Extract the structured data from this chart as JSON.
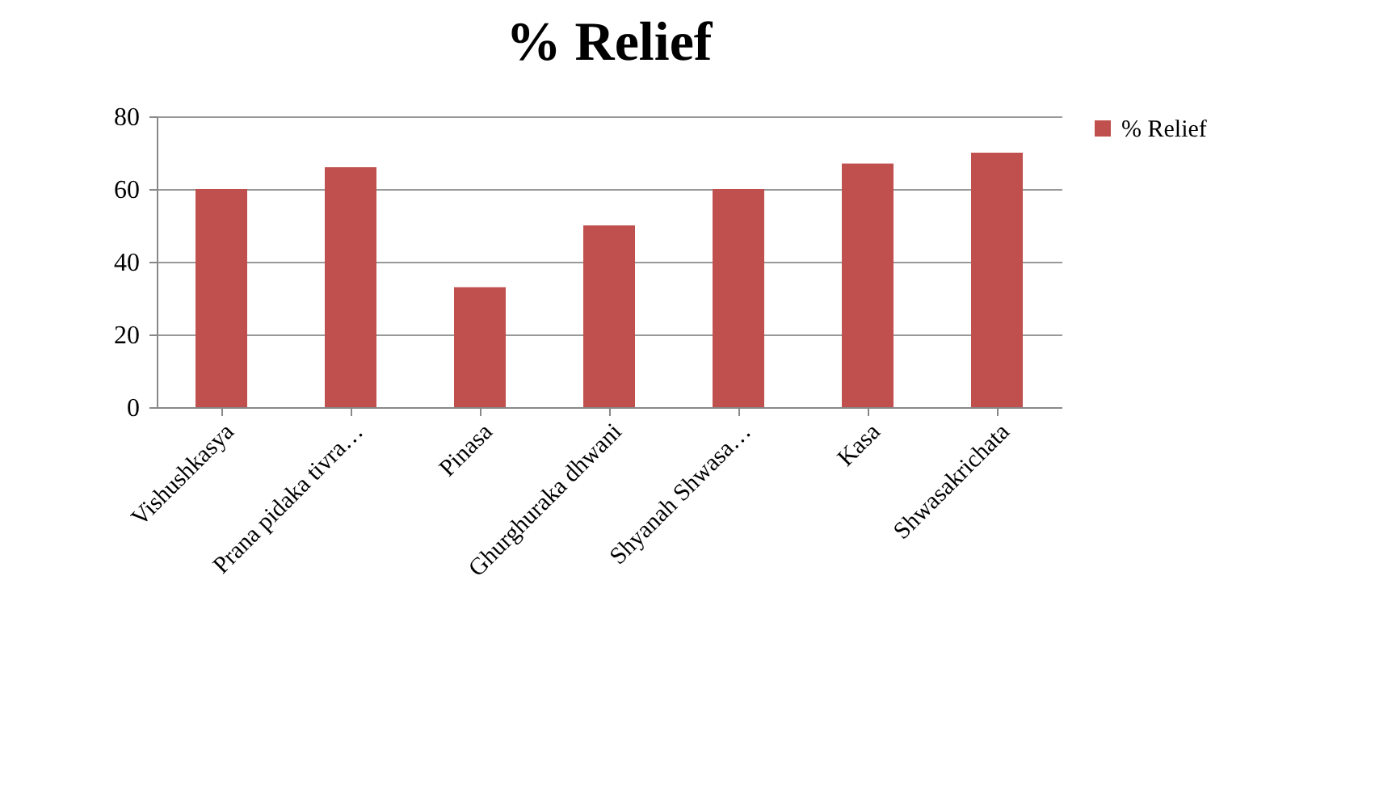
{
  "chart_data": {
    "type": "bar",
    "title": "% Relief",
    "categories": [
      "Vishushkasya",
      "Prana pidaka tivra…",
      "Pinasa",
      "Ghurghuraka dhwani",
      "Shyanah Shwasa…",
      "Kasa",
      "Shwasakrichata"
    ],
    "series": [
      {
        "name": "% Relief",
        "color": "#c0504d",
        "values": [
          60,
          66,
          33,
          50,
          60,
          67,
          70
        ]
      }
    ],
    "ylim": [
      0,
      80
    ],
    "yticks": [
      0,
      20,
      40,
      60,
      80
    ],
    "grid": "y",
    "legend": "right"
  }
}
